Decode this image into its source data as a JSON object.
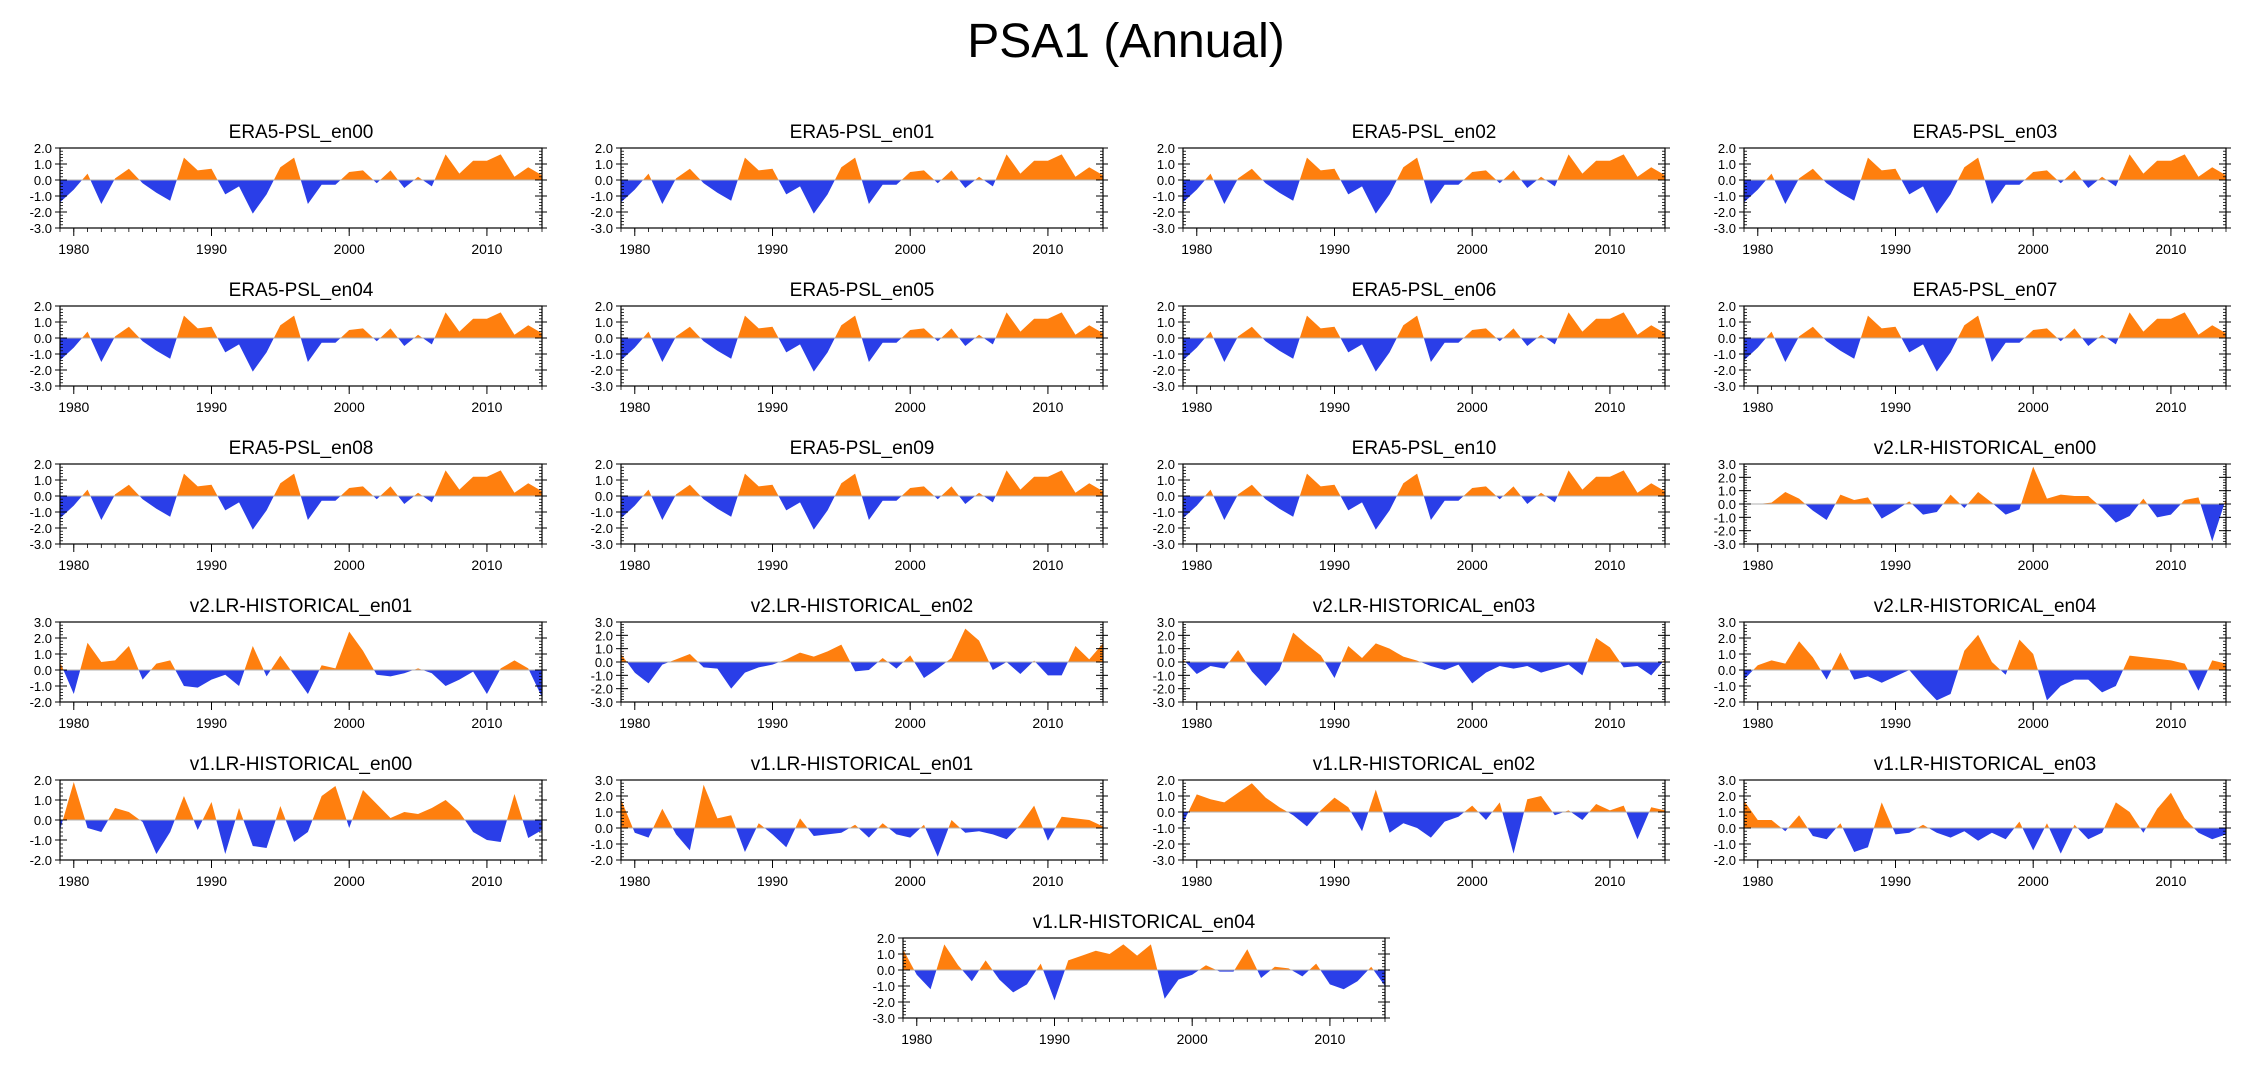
{
  "title": "PSA1 (Annual)",
  "colors": {
    "positive": "#ff7f0e",
    "negative": "#2a3ee8",
    "axis": "#000000",
    "zero_line": "#b0b0b0"
  },
  "chart_data": [
    {
      "type": "area",
      "title": "ERA5-PSL_en00",
      "x_start": 1979,
      "x_end": 2014,
      "x_ticks": [
        1980,
        1990,
        2000,
        2010
      ],
      "y_ticks": [
        "2.0",
        "1.0",
        "0.0",
        "-1.0",
        "-2.0",
        "-3.0"
      ],
      "ylim": [
        -3,
        2
      ],
      "values": [
        -1.4,
        -0.6,
        0.4,
        -1.5,
        0.1,
        0.7,
        -0.2,
        -0.8,
        -1.3,
        1.4,
        0.6,
        0.7,
        -0.9,
        -0.4,
        -2.1,
        -0.9,
        0.8,
        1.4,
        -1.5,
        -0.3,
        -0.3,
        0.5,
        0.6,
        -0.2,
        0.6,
        -0.5,
        0.2,
        -0.4,
        1.6,
        0.4,
        1.2,
        1.2,
        1.6,
        0.2,
        0.8,
        0.3
      ]
    },
    {
      "type": "area",
      "title": "ERA5-PSL_en01",
      "x_start": 1979,
      "x_end": 2014,
      "x_ticks": [
        1980,
        1990,
        2000,
        2010
      ],
      "y_ticks": [
        "2.0",
        "1.0",
        "0.0",
        "-1.0",
        "-2.0",
        "-3.0"
      ],
      "ylim": [
        -3,
        2
      ],
      "values": [
        -1.4,
        -0.6,
        0.4,
        -1.5,
        0.1,
        0.7,
        -0.2,
        -0.8,
        -1.3,
        1.4,
        0.6,
        0.7,
        -0.9,
        -0.4,
        -2.1,
        -0.9,
        0.8,
        1.4,
        -1.5,
        -0.3,
        -0.3,
        0.5,
        0.6,
        -0.2,
        0.6,
        -0.5,
        0.2,
        -0.4,
        1.6,
        0.4,
        1.2,
        1.2,
        1.6,
        0.2,
        0.8,
        0.3
      ]
    },
    {
      "type": "area",
      "title": "ERA5-PSL_en02",
      "x_start": 1979,
      "x_end": 2014,
      "x_ticks": [
        1980,
        1990,
        2000,
        2010
      ],
      "y_ticks": [
        "2.0",
        "1.0",
        "0.0",
        "-1.0",
        "-2.0",
        "-3.0"
      ],
      "ylim": [
        -3,
        2
      ],
      "values": [
        -1.4,
        -0.6,
        0.4,
        -1.5,
        0.1,
        0.7,
        -0.2,
        -0.8,
        -1.3,
        1.4,
        0.6,
        0.7,
        -0.9,
        -0.4,
        -2.1,
        -0.9,
        0.8,
        1.4,
        -1.5,
        -0.3,
        -0.3,
        0.5,
        0.6,
        -0.2,
        0.6,
        -0.5,
        0.2,
        -0.4,
        1.6,
        0.4,
        1.2,
        1.2,
        1.6,
        0.2,
        0.8,
        0.3
      ]
    },
    {
      "type": "area",
      "title": "ERA5-PSL_en03",
      "x_start": 1979,
      "x_end": 2014,
      "x_ticks": [
        1980,
        1990,
        2000,
        2010
      ],
      "y_ticks": [
        "2.0",
        "1.0",
        "0.0",
        "-1.0",
        "-2.0",
        "-3.0"
      ],
      "ylim": [
        -3,
        2
      ],
      "values": [
        -1.4,
        -0.6,
        0.4,
        -1.5,
        0.1,
        0.7,
        -0.2,
        -0.8,
        -1.3,
        1.4,
        0.6,
        0.7,
        -0.9,
        -0.4,
        -2.1,
        -0.9,
        0.8,
        1.4,
        -1.5,
        -0.3,
        -0.3,
        0.5,
        0.6,
        -0.2,
        0.6,
        -0.5,
        0.2,
        -0.4,
        1.6,
        0.4,
        1.2,
        1.2,
        1.6,
        0.2,
        0.8,
        0.3
      ]
    },
    {
      "type": "area",
      "title": "ERA5-PSL_en04",
      "x_start": 1979,
      "x_end": 2014,
      "x_ticks": [
        1980,
        1990,
        2000,
        2010
      ],
      "y_ticks": [
        "2.0",
        "1.0",
        "0.0",
        "-1.0",
        "-2.0",
        "-3.0"
      ],
      "ylim": [
        -3,
        2
      ],
      "values": [
        -1.4,
        -0.6,
        0.4,
        -1.5,
        0.1,
        0.7,
        -0.2,
        -0.8,
        -1.3,
        1.4,
        0.6,
        0.7,
        -0.9,
        -0.4,
        -2.1,
        -0.9,
        0.8,
        1.4,
        -1.5,
        -0.3,
        -0.3,
        0.5,
        0.6,
        -0.2,
        0.6,
        -0.5,
        0.2,
        -0.4,
        1.6,
        0.4,
        1.2,
        1.2,
        1.6,
        0.2,
        0.8,
        0.3
      ]
    },
    {
      "type": "area",
      "title": "ERA5-PSL_en05",
      "x_start": 1979,
      "x_end": 2014,
      "x_ticks": [
        1980,
        1990,
        2000,
        2010
      ],
      "y_ticks": [
        "2.0",
        "1.0",
        "0.0",
        "-1.0",
        "-2.0",
        "-3.0"
      ],
      "ylim": [
        -3,
        2
      ],
      "values": [
        -1.4,
        -0.6,
        0.4,
        -1.5,
        0.1,
        0.7,
        -0.2,
        -0.8,
        -1.3,
        1.4,
        0.6,
        0.7,
        -0.9,
        -0.4,
        -2.1,
        -0.9,
        0.8,
        1.4,
        -1.5,
        -0.3,
        -0.3,
        0.5,
        0.6,
        -0.2,
        0.6,
        -0.5,
        0.2,
        -0.4,
        1.6,
        0.4,
        1.2,
        1.2,
        1.6,
        0.2,
        0.8,
        0.3
      ]
    },
    {
      "type": "area",
      "title": "ERA5-PSL_en06",
      "x_start": 1979,
      "x_end": 2014,
      "x_ticks": [
        1980,
        1990,
        2000,
        2010
      ],
      "y_ticks": [
        "2.0",
        "1.0",
        "0.0",
        "-1.0",
        "-2.0",
        "-3.0"
      ],
      "ylim": [
        -3,
        2
      ],
      "values": [
        -1.4,
        -0.6,
        0.4,
        -1.5,
        0.1,
        0.7,
        -0.2,
        -0.8,
        -1.3,
        1.4,
        0.6,
        0.7,
        -0.9,
        -0.4,
        -2.1,
        -0.9,
        0.8,
        1.4,
        -1.5,
        -0.3,
        -0.3,
        0.5,
        0.6,
        -0.2,
        0.6,
        -0.5,
        0.2,
        -0.4,
        1.6,
        0.4,
        1.2,
        1.2,
        1.6,
        0.2,
        0.8,
        0.3
      ]
    },
    {
      "type": "area",
      "title": "ERA5-PSL_en07",
      "x_start": 1979,
      "x_end": 2014,
      "x_ticks": [
        1980,
        1990,
        2000,
        2010
      ],
      "y_ticks": [
        "2.0",
        "1.0",
        "0.0",
        "-1.0",
        "-2.0",
        "-3.0"
      ],
      "ylim": [
        -3,
        2
      ],
      "values": [
        -1.4,
        -0.6,
        0.4,
        -1.5,
        0.1,
        0.7,
        -0.2,
        -0.8,
        -1.3,
        1.4,
        0.6,
        0.7,
        -0.9,
        -0.4,
        -2.1,
        -0.9,
        0.8,
        1.4,
        -1.5,
        -0.3,
        -0.3,
        0.5,
        0.6,
        -0.2,
        0.6,
        -0.5,
        0.2,
        -0.4,
        1.6,
        0.4,
        1.2,
        1.2,
        1.6,
        0.2,
        0.8,
        0.3
      ]
    },
    {
      "type": "area",
      "title": "ERA5-PSL_en08",
      "x_start": 1979,
      "x_end": 2014,
      "x_ticks": [
        1980,
        1990,
        2000,
        2010
      ],
      "y_ticks": [
        "2.0",
        "1.0",
        "0.0",
        "-1.0",
        "-2.0",
        "-3.0"
      ],
      "ylim": [
        -3,
        2
      ],
      "values": [
        -1.4,
        -0.6,
        0.4,
        -1.5,
        0.1,
        0.7,
        -0.2,
        -0.8,
        -1.3,
        1.4,
        0.6,
        0.7,
        -0.9,
        -0.4,
        -2.1,
        -0.9,
        0.8,
        1.4,
        -1.5,
        -0.3,
        -0.3,
        0.5,
        0.6,
        -0.2,
        0.6,
        -0.5,
        0.2,
        -0.4,
        1.6,
        0.4,
        1.2,
        1.2,
        1.6,
        0.2,
        0.8,
        0.3
      ]
    },
    {
      "type": "area",
      "title": "ERA5-PSL_en09",
      "x_start": 1979,
      "x_end": 2014,
      "x_ticks": [
        1980,
        1990,
        2000,
        2010
      ],
      "y_ticks": [
        "2.0",
        "1.0",
        "0.0",
        "-1.0",
        "-2.0",
        "-3.0"
      ],
      "ylim": [
        -3,
        2
      ],
      "values": [
        -1.4,
        -0.6,
        0.4,
        -1.5,
        0.1,
        0.7,
        -0.2,
        -0.8,
        -1.3,
        1.4,
        0.6,
        0.7,
        -0.9,
        -0.4,
        -2.1,
        -0.9,
        0.8,
        1.4,
        -1.5,
        -0.3,
        -0.3,
        0.5,
        0.6,
        -0.2,
        0.6,
        -0.5,
        0.2,
        -0.4,
        1.6,
        0.4,
        1.2,
        1.2,
        1.6,
        0.2,
        0.8,
        0.3
      ]
    },
    {
      "type": "area",
      "title": "ERA5-PSL_en10",
      "x_start": 1979,
      "x_end": 2014,
      "x_ticks": [
        1980,
        1990,
        2000,
        2010
      ],
      "y_ticks": [
        "2.0",
        "1.0",
        "0.0",
        "-1.0",
        "-2.0",
        "-3.0"
      ],
      "ylim": [
        -3,
        2
      ],
      "values": [
        -1.4,
        -0.6,
        0.4,
        -1.5,
        0.1,
        0.7,
        -0.2,
        -0.8,
        -1.3,
        1.4,
        0.6,
        0.7,
        -0.9,
        -0.4,
        -2.1,
        -0.9,
        0.8,
        1.4,
        -1.5,
        -0.3,
        -0.3,
        0.5,
        0.6,
        -0.2,
        0.6,
        -0.5,
        0.2,
        -0.4,
        1.6,
        0.4,
        1.2,
        1.2,
        1.6,
        0.2,
        0.8,
        0.3
      ]
    },
    {
      "type": "area",
      "title": "v2.LR-HISTORICAL_en00",
      "x_start": 1979,
      "x_end": 2014,
      "x_ticks": [
        1980,
        1990,
        2000,
        2010
      ],
      "y_ticks": [
        "3.0",
        "2.0",
        "1.0",
        "0.0",
        "-1.0",
        "-2.0",
        "-3.0"
      ],
      "ylim": [
        -3,
        3
      ],
      "values": [
        0.0,
        0.0,
        0.1,
        0.9,
        0.4,
        -0.5,
        -1.2,
        0.7,
        0.3,
        0.5,
        -1.1,
        -0.5,
        0.2,
        -0.8,
        -0.6,
        0.7,
        -0.3,
        0.9,
        0.1,
        -0.8,
        -0.4,
        2.8,
        0.4,
        0.7,
        0.6,
        0.6,
        -0.3,
        -1.4,
        -0.9,
        0.4,
        -1.0,
        -0.8,
        0.3,
        0.5,
        -2.8,
        0.4
      ]
    },
    {
      "type": "area",
      "title": "v2.LR-HISTORICAL_en01",
      "x_start": 1979,
      "x_end": 2014,
      "x_ticks": [
        1980,
        1990,
        2000,
        2010
      ],
      "y_ticks": [
        "3.0",
        "2.0",
        "1.0",
        "0.0",
        "-1.0",
        "-2.0"
      ],
      "ylim": [
        -2,
        3
      ],
      "values": [
        0.5,
        -1.5,
        1.7,
        0.5,
        0.6,
        1.5,
        -0.6,
        0.4,
        0.6,
        -1.0,
        -1.1,
        -0.6,
        -0.3,
        -1.0,
        1.5,
        -0.4,
        0.9,
        -0.3,
        -1.5,
        0.3,
        0.1,
        2.4,
        1.2,
        -0.3,
        -0.4,
        -0.2,
        0.1,
        -0.2,
        -1.0,
        -0.6,
        -0.1,
        -1.5,
        0.1,
        0.6,
        0.1,
        -1.7
      ]
    },
    {
      "type": "area",
      "title": "v2.LR-HISTORICAL_en02",
      "x_start": 1979,
      "x_end": 2014,
      "x_ticks": [
        1980,
        1990,
        2000,
        2010
      ],
      "y_ticks": [
        "3.0",
        "2.0",
        "1.0",
        "0.0",
        "-1.0",
        "-2.0",
        "-3.0"
      ],
      "ylim": [
        -3,
        3
      ],
      "values": [
        0.6,
        -0.8,
        -1.6,
        -0.2,
        0.2,
        0.6,
        -0.4,
        -0.5,
        -2.0,
        -0.8,
        -0.4,
        -0.2,
        0.2,
        0.7,
        0.4,
        0.8,
        1.3,
        -0.7,
        -0.6,
        0.3,
        -0.5,
        0.5,
        -1.2,
        -0.5,
        0.3,
        2.5,
        1.6,
        -0.6,
        0.0,
        -0.9,
        0.1,
        -1.0,
        -1.0,
        1.2,
        0.2,
        1.4
      ]
    },
    {
      "type": "area",
      "title": "v2.LR-HISTORICAL_en03",
      "x_start": 1979,
      "x_end": 2014,
      "x_ticks": [
        1980,
        1990,
        2000,
        2010
      ],
      "y_ticks": [
        "3.0",
        "2.0",
        "1.0",
        "0.0",
        "-1.0",
        "-2.0",
        "-3.0"
      ],
      "ylim": [
        -3,
        3
      ],
      "values": [
        0.2,
        -0.9,
        -0.3,
        -0.5,
        0.9,
        -0.7,
        -1.8,
        -0.6,
        2.2,
        1.3,
        0.5,
        -1.2,
        1.2,
        0.3,
        1.4,
        1.0,
        0.4,
        0.1,
        -0.3,
        -0.6,
        -0.2,
        -1.6,
        -0.8,
        -0.3,
        -0.5,
        -0.3,
        -0.8,
        -0.5,
        -0.2,
        -1.0,
        1.8,
        1.1,
        -0.4,
        -0.3,
        -1.0,
        0.2
      ]
    },
    {
      "type": "area",
      "title": "v2.LR-HISTORICAL_en04",
      "x_start": 1979,
      "x_end": 2014,
      "x_ticks": [
        1980,
        1990,
        2000,
        2010
      ],
      "y_ticks": [
        "3.0",
        "2.0",
        "1.0",
        "0.0",
        "-1.0",
        "-2.0"
      ],
      "ylim": [
        -2,
        3
      ],
      "values": [
        -0.6,
        0.3,
        0.6,
        0.4,
        1.8,
        0.8,
        -0.6,
        1.1,
        -0.6,
        -0.4,
        -0.8,
        -0.4,
        0.0,
        -1.0,
        -1.9,
        -1.5,
        1.2,
        2.2,
        0.5,
        -0.3,
        1.9,
        1.0,
        -1.9,
        -1.0,
        -0.6,
        -0.6,
        -1.4,
        -1.0,
        0.9,
        0.8,
        0.7,
        0.6,
        0.4,
        -1.3,
        0.6,
        0.4
      ]
    },
    {
      "type": "area",
      "title": "v1.LR-HISTORICAL_en00",
      "x_start": 1979,
      "x_end": 2014,
      "x_ticks": [
        1980,
        1990,
        2000,
        2010
      ],
      "y_ticks": [
        "2.0",
        "1.0",
        "0.0",
        "-1.0",
        "-2.0"
      ],
      "ylim": [
        -2,
        2
      ],
      "values": [
        -0.5,
        1.9,
        -0.4,
        -0.6,
        0.6,
        0.4,
        -0.1,
        -1.7,
        -0.6,
        1.2,
        -0.5,
        0.9,
        -1.7,
        0.6,
        -1.3,
        -1.4,
        0.7,
        -1.1,
        -0.6,
        1.2,
        1.7,
        -0.4,
        1.5,
        0.8,
        0.1,
        0.4,
        0.3,
        0.6,
        1.0,
        0.4,
        -0.6,
        -1.0,
        -1.1,
        1.3,
        -0.9,
        -0.5
      ]
    },
    {
      "type": "area",
      "title": "v1.LR-HISTORICAL_en01",
      "x_start": 1979,
      "x_end": 2014,
      "x_ticks": [
        1980,
        1990,
        2000,
        2010
      ],
      "y_ticks": [
        "3.0",
        "2.0",
        "1.0",
        "0.0",
        "-1.0",
        "-2.0"
      ],
      "ylim": [
        -2,
        3
      ],
      "values": [
        1.8,
        -0.3,
        -0.6,
        1.2,
        -0.4,
        -1.4,
        2.7,
        0.6,
        0.8,
        -1.5,
        0.3,
        -0.4,
        -1.2,
        0.6,
        -0.5,
        -0.4,
        -0.3,
        0.2,
        -0.6,
        0.3,
        -0.4,
        -0.6,
        0.2,
        -1.8,
        0.5,
        -0.3,
        -0.2,
        -0.4,
        -0.7,
        0.2,
        1.4,
        -0.8,
        0.7,
        0.6,
        0.5,
        0.1
      ]
    },
    {
      "type": "area",
      "title": "v1.LR-HISTORICAL_en02",
      "x_start": 1979,
      "x_end": 2014,
      "x_ticks": [
        1980,
        1990,
        2000,
        2010
      ],
      "y_ticks": [
        "2.0",
        "1.0",
        "0.0",
        "-1.0",
        "-2.0",
        "-3.0"
      ],
      "ylim": [
        -3,
        2
      ],
      "values": [
        -0.7,
        1.1,
        0.8,
        0.6,
        1.2,
        1.8,
        0.9,
        0.3,
        -0.2,
        -0.9,
        0.1,
        0.9,
        0.3,
        -1.2,
        1.4,
        -1.3,
        -0.7,
        -1.0,
        -1.6,
        -0.6,
        -0.3,
        0.4,
        -0.5,
        0.6,
        -2.6,
        0.8,
        1.0,
        -0.2,
        0.1,
        -0.5,
        0.5,
        0.1,
        0.4,
        -1.7,
        0.3,
        0.1
      ]
    },
    {
      "type": "area",
      "title": "v1.LR-HISTORICAL_en03",
      "x_start": 1979,
      "x_end": 2014,
      "x_ticks": [
        1980,
        1990,
        2000,
        2010
      ],
      "y_ticks": [
        "3.0",
        "2.0",
        "1.0",
        "0.0",
        "-1.0",
        "-2.0"
      ],
      "ylim": [
        -2,
        3
      ],
      "values": [
        1.7,
        0.5,
        0.5,
        -0.2,
        0.8,
        -0.5,
        -0.7,
        0.3,
        -1.5,
        -1.2,
        1.6,
        -0.4,
        -0.3,
        0.2,
        -0.3,
        -0.6,
        -0.2,
        -0.8,
        -0.3,
        -0.7,
        0.4,
        -1.4,
        0.3,
        -1.6,
        0.2,
        -0.7,
        -0.3,
        1.6,
        1.0,
        -0.3,
        1.2,
        2.2,
        0.6,
        -0.3,
        -0.7,
        -0.4
      ]
    },
    {
      "type": "area",
      "title": "v1.LR-HISTORICAL_en04",
      "x_start": 1979,
      "x_end": 2014,
      "x_ticks": [
        1980,
        1990,
        2000,
        2010
      ],
      "y_ticks": [
        "2.0",
        "1.0",
        "0.0",
        "-1.0",
        "-2.0",
        "-3.0"
      ],
      "ylim": [
        -3,
        2
      ],
      "values": [
        1.3,
        -0.3,
        -1.2,
        1.6,
        0.3,
        -0.7,
        0.6,
        -0.6,
        -1.4,
        -0.9,
        0.4,
        -1.9,
        0.6,
        0.9,
        1.2,
        1.0,
        1.6,
        0.9,
        1.6,
        -1.8,
        -0.6,
        -0.3,
        0.3,
        -0.1,
        -0.1,
        1.3,
        -0.5,
        0.2,
        0.1,
        -0.4,
        0.4,
        -0.9,
        -1.2,
        -0.7,
        0.2,
        -1.0
      ]
    }
  ]
}
